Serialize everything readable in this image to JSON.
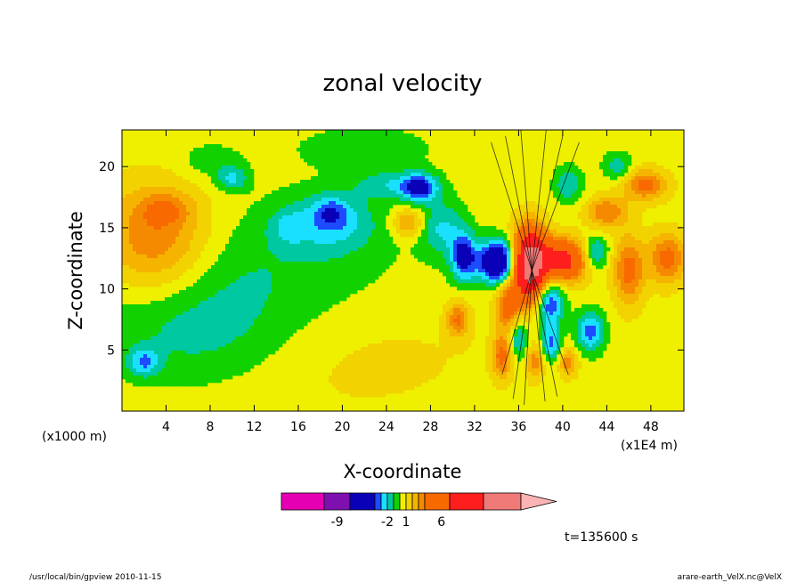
{
  "chart_data": {
    "type": "heatmap",
    "title": "zonal velocity",
    "xlabel": "X-coordinate",
    "ylabel": "Z-coordinate",
    "x_unit_left": "(x1000 m)",
    "x_unit_right": "(x1E4 m)",
    "xlim": [
      0,
      51
    ],
    "ylim": [
      0,
      23
    ],
    "x_ticks": [
      4,
      8,
      12,
      16,
      20,
      24,
      28,
      32,
      36,
      40,
      44,
      48
    ],
    "y_ticks": [
      5,
      10,
      15,
      20
    ],
    "colorbar": {
      "tick_labels": [
        {
          "label": "-9",
          "value": -9
        },
        {
          "label": "-2",
          "value": -2
        },
        {
          "label": "1",
          "value": 1
        },
        {
          "label": "6",
          "value": 6
        }
      ],
      "levels": [
        {
          "lo": -15,
          "hi": -11,
          "color": "#e600b4"
        },
        {
          "lo": -11,
          "hi": -7,
          "color": "#7e10b2"
        },
        {
          "lo": -7,
          "hi": -4,
          "color": "#0a00b8"
        },
        {
          "lo": -4,
          "hi": -3,
          "color": "#1d4bff"
        },
        {
          "lo": -3,
          "hi": -2,
          "color": "#19e0ff"
        },
        {
          "lo": -2,
          "hi": -1,
          "color": "#00c8a0"
        },
        {
          "lo": -1,
          "hi": 0,
          "color": "#11d200"
        },
        {
          "lo": 0,
          "hi": 1,
          "color": "#eef000"
        },
        {
          "lo": 1,
          "hi": 2,
          "color": "#f2d200"
        },
        {
          "lo": 2,
          "hi": 3,
          "color": "#f5b400"
        },
        {
          "lo": 3,
          "hi": 4,
          "color": "#f58a00"
        },
        {
          "lo": 4,
          "hi": 7,
          "color": "#f86a00"
        },
        {
          "lo": 7,
          "hi": 11,
          "color": "#ff1e1e"
        },
        {
          "lo": 11,
          "hi": 15,
          "color": "#f07a78"
        },
        {
          "lo": 15,
          "hi": 19,
          "color": "#fbb3b3"
        }
      ]
    },
    "field_description": "zonal velocity contour field over X-coordinate and Z-coordinate",
    "features": [
      {
        "x": 37,
        "z": 12,
        "sx": 1.1,
        "sz": 2.0,
        "amp": 14
      },
      {
        "x": 34.2,
        "z": 12.2,
        "sx": 1.3,
        "sz": 1.2,
        "amp": -8
      },
      {
        "x": 40,
        "z": 12.3,
        "sx": 1.4,
        "sz": 1.2,
        "amp": 8
      },
      {
        "x": 38.8,
        "z": 9,
        "sx": 0.9,
        "sz": 1.5,
        "amp": -5
      },
      {
        "x": 35,
        "z": 8.5,
        "sx": 0.8,
        "sz": 1.4,
        "amp": 4
      },
      {
        "x": 31,
        "z": 12.6,
        "sx": 0.8,
        "sz": 1.4,
        "amp": -5
      },
      {
        "x": 27,
        "z": 18.3,
        "sx": 1.2,
        "sz": 0.8,
        "amp": -5
      },
      {
        "x": 29,
        "z": 15,
        "sx": 1.4,
        "sz": 1.6,
        "amp": -2.5
      },
      {
        "x": 19,
        "z": 15.5,
        "sx": 2.8,
        "sz": 1.7,
        "amp": -2.8
      },
      {
        "x": 19,
        "z": 16.3,
        "sx": 1.0,
        "sz": 0.8,
        "amp": -2
      },
      {
        "x": 15,
        "z": 15,
        "sx": 1.1,
        "sz": 1.0,
        "amp": -1.5
      },
      {
        "x": 10,
        "z": 19,
        "sx": 1.0,
        "sz": 0.7,
        "amp": -2.5
      },
      {
        "x": 2,
        "z": 4,
        "sx": 1.0,
        "sz": 0.8,
        "amp": -3
      },
      {
        "x": 3,
        "z": 14,
        "sx": 3.6,
        "sz": 3.2,
        "amp": 4
      },
      {
        "x": 4,
        "z": 16.5,
        "sx": 1.6,
        "sz": 0.9,
        "amp": 2
      },
      {
        "x": 26,
        "z": 15.4,
        "sx": 1.0,
        "sz": 0.8,
        "amp": 3
      },
      {
        "x": 46,
        "z": 11.5,
        "sx": 1.0,
        "sz": 2.0,
        "amp": 4
      },
      {
        "x": 49.5,
        "z": 12.5,
        "sx": 1.2,
        "sz": 1.5,
        "amp": 4
      },
      {
        "x": 47.5,
        "z": 18.5,
        "sx": 1.4,
        "sz": 0.9,
        "amp": 4
      },
      {
        "x": 44,
        "z": 16.3,
        "sx": 1.3,
        "sz": 0.9,
        "amp": 3.5
      },
      {
        "x": 43,
        "z": 13,
        "sx": 0.8,
        "sz": 0.9,
        "amp": -3
      },
      {
        "x": 42.5,
        "z": 6.5,
        "sx": 0.9,
        "sz": 1.2,
        "amp": -4
      },
      {
        "x": 45,
        "z": 20,
        "sx": 0.9,
        "sz": 0.8,
        "amp": -2.2
      },
      {
        "x": 40.5,
        "z": 18.5,
        "sx": 0.9,
        "sz": 1.0,
        "amp": -2.5
      },
      {
        "x": 30.5,
        "z": 7.5,
        "sx": 0.7,
        "sz": 1.0,
        "amp": 3.5
      },
      {
        "x": 34.5,
        "z": 4.5,
        "sx": 0.6,
        "sz": 1.2,
        "amp": 4
      },
      {
        "x": 36,
        "z": 6,
        "sx": 0.6,
        "sz": 1.2,
        "amp": -3
      },
      {
        "x": 37.5,
        "z": 4,
        "sx": 0.5,
        "sz": 1.0,
        "amp": 3
      },
      {
        "x": 40.5,
        "z": 4,
        "sx": 0.6,
        "sz": 0.8,
        "amp": 3
      },
      {
        "x": 39,
        "z": 5.5,
        "sx": 0.6,
        "sz": 1.0,
        "amp": -3.5
      },
      {
        "x": 11,
        "z": 11,
        "sx": 10,
        "sz": 4,
        "amp": -1.6
      },
      {
        "x": 7,
        "z": 6,
        "sx": 6,
        "sz": 3,
        "amp": -1.6
      },
      {
        "x": 20,
        "z": 5,
        "sx": 10,
        "sz": 4,
        "amp": 0.9
      },
      {
        "x": 22,
        "z": 21.5,
        "sx": 4,
        "sz": 1.2,
        "amp": -1.4
      },
      {
        "x": 8,
        "z": 20.5,
        "sx": 2,
        "sz": 1.0,
        "amp": -1.2
      },
      {
        "x": 24,
        "z": 18.5,
        "sx": 2,
        "sz": 0.8,
        "amp": -2.0
      }
    ],
    "annotations": [
      "t=135600 s"
    ]
  },
  "footer": {
    "left": "/usr/local/bin/gpview   2010-11-15",
    "right": "arare-earth_VelX.nc@VelX"
  }
}
